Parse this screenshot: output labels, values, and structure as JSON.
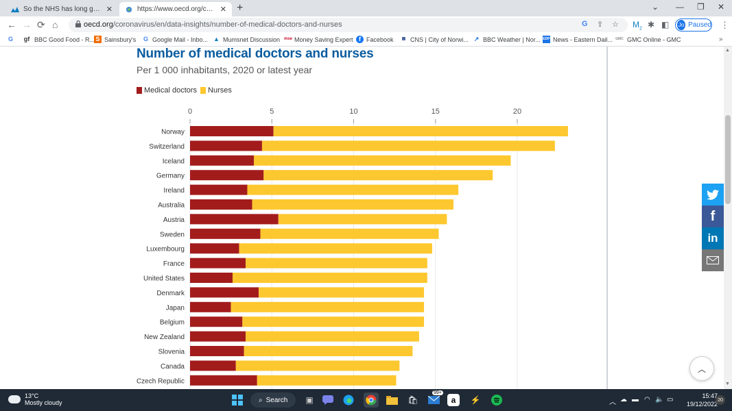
{
  "browser": {
    "tabs": [
      {
        "title": "So the NHS has long gone | Mum",
        "favicon": "mumsnet-icon"
      },
      {
        "title": "https://www.oecd.org/coronaviru",
        "favicon": "globe-icon",
        "active": true
      }
    ],
    "url_host": "oecd.org",
    "url_path": "/coronavirus/en/data-insights/number-of-medical-doctors-and-nurses",
    "profile_initials": "Jo",
    "profile_status": "Paused",
    "extension_badge": "2",
    "bookmarks": [
      {
        "label": "",
        "icon": "G"
      },
      {
        "label": "BBC Good Food - R...",
        "icon": "gf"
      },
      {
        "label": "Sainsbury's",
        "icon": "S"
      },
      {
        "label": "Google Mail - Inbo...",
        "icon": "G"
      },
      {
        "label": "Mumsnet Discussion",
        "icon": "m"
      },
      {
        "label": "Money Saving Expert",
        "icon": "mse"
      },
      {
        "label": "Facebook",
        "icon": "f"
      },
      {
        "label": "CNS | City of Norwi...",
        "icon": "cns"
      },
      {
        "label": "BBC Weather | Nor...",
        "icon": "w"
      },
      {
        "label": "News - Eastern Dail...",
        "icon": "edp"
      },
      {
        "label": "GMC Online - GMC",
        "icon": "gmc"
      }
    ]
  },
  "colors": {
    "doctors": "#a31c1c",
    "nurses": "#fdc82f",
    "title": "#0b5c9f"
  },
  "chart_data": {
    "type": "bar",
    "orientation": "horizontal",
    "stacked": true,
    "title": "Number of medical doctors and nurses",
    "subtitle": "Per 1 000 inhabitants, 2020 or latest year",
    "legend_placement": "top-left",
    "grid": true,
    "xlim": [
      0,
      23
    ],
    "xticks": [
      0,
      5,
      10,
      15,
      20
    ],
    "categories": [
      "Norway",
      "Switzerland",
      "Iceland",
      "Germany",
      "Ireland",
      "Australia",
      "Austria",
      "Sweden",
      "Luxembourg",
      "France",
      "United States",
      "Denmark",
      "Japan",
      "Belgium",
      "New Zealand",
      "Slovenia",
      "Canada",
      "Czech Republic"
    ],
    "series": [
      {
        "name": "Medical doctors",
        "values": [
          5.1,
          4.4,
          3.9,
          4.5,
          3.5,
          3.8,
          5.4,
          4.3,
          3.0,
          3.4,
          2.6,
          4.2,
          2.5,
          3.2,
          3.4,
          3.3,
          2.8,
          4.1
        ]
      },
      {
        "name": "Nurses",
        "values": [
          18.0,
          17.9,
          15.7,
          14.0,
          12.9,
          12.3,
          10.3,
          10.9,
          11.8,
          11.1,
          11.9,
          10.1,
          11.8,
          11.1,
          10.6,
          10.3,
          10.0,
          8.5
        ]
      }
    ]
  },
  "share": {
    "twitter": "twitter-icon",
    "facebook": "facebook-icon",
    "linkedin": "linkedin-icon",
    "email": "email-icon"
  },
  "taskbar": {
    "temperature": "13°C",
    "weather": "Mostly cloudy",
    "search_label": "Search",
    "mail_badge": "99+",
    "time": "15:47",
    "date": "19/12/2022",
    "notifications": "20"
  }
}
